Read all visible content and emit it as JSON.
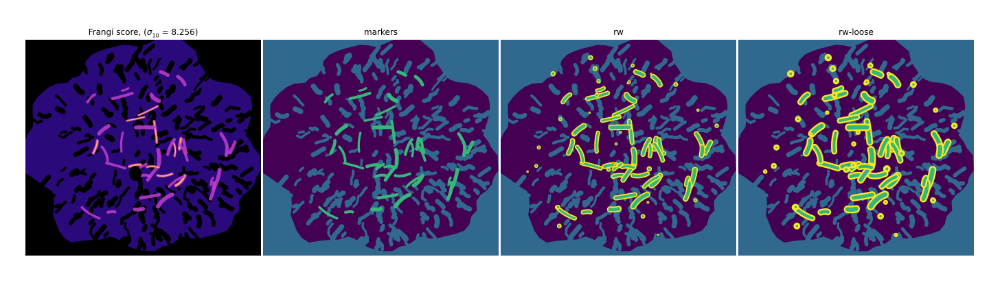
{
  "panels": [
    {
      "title_prefix": "Frangi score, (",
      "title_sym": "σ",
      "title_sub": "10",
      "title_suffix": " = 8.256)",
      "kind": "frangi"
    },
    {
      "title": "markers",
      "kind": "markers"
    },
    {
      "title": "rw",
      "kind": "rw"
    },
    {
      "title": "rw-loose",
      "kind": "rwloose"
    }
  ],
  "colors": {
    "frangi_background": "#000000",
    "frangi_base": "#2a0a7a",
    "frangi_high": "#c23dd0",
    "frangi_peak": "#ffb060",
    "label_background": "#31688e",
    "label_tissue": "#440154",
    "label_marker": "#35b779",
    "label_edge": "#fde725"
  }
}
